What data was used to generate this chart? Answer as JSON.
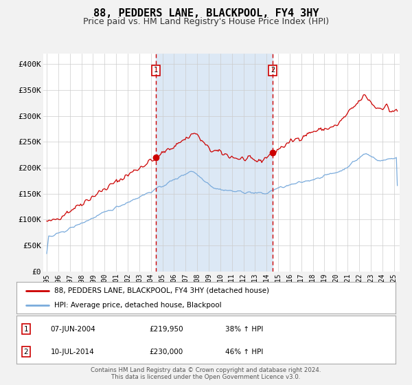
{
  "title": "88, PEDDERS LANE, BLACKPOOL, FY4 3HY",
  "subtitle": "Price paid vs. HM Land Registry's House Price Index (HPI)",
  "title_fontsize": 11,
  "subtitle_fontsize": 9,
  "xlim": [
    1994.7,
    2025.5
  ],
  "ylim": [
    0,
    420000
  ],
  "yticks": [
    0,
    50000,
    100000,
    150000,
    200000,
    250000,
    300000,
    350000,
    400000
  ],
  "ytick_labels": [
    "£0",
    "£50K",
    "£100K",
    "£150K",
    "£200K",
    "£250K",
    "£300K",
    "£350K",
    "£400K"
  ],
  "xticks": [
    1995,
    1996,
    1997,
    1998,
    1999,
    2000,
    2001,
    2002,
    2003,
    2004,
    2005,
    2006,
    2007,
    2008,
    2009,
    2010,
    2011,
    2012,
    2013,
    2014,
    2015,
    2016,
    2017,
    2018,
    2019,
    2020,
    2021,
    2022,
    2023,
    2024,
    2025
  ],
  "background_color": "#f2f2f2",
  "plot_bg_color": "#ffffff",
  "shade_color": "#dce8f5",
  "grid_color": "#cccccc",
  "red_line_color": "#cc0000",
  "blue_line_color": "#7aabdc",
  "marker1_date": 2004.44,
  "marker1_value": 219950,
  "marker1_label": "1",
  "marker2_date": 2014.52,
  "marker2_value": 230000,
  "marker2_label": "2",
  "legend_line1": "88, PEDDERS LANE, BLACKPOOL, FY4 3HY (detached house)",
  "legend_line2": "HPI: Average price, detached house, Blackpool",
  "table_row1": [
    "1",
    "07-JUN-2004",
    "£219,950",
    "38% ↑ HPI"
  ],
  "table_row2": [
    "2",
    "10-JUL-2014",
    "£230,000",
    "46% ↑ HPI"
  ],
  "footer1": "Contains HM Land Registry data © Crown copyright and database right 2024.",
  "footer2": "This data is licensed under the Open Government Licence v3.0."
}
